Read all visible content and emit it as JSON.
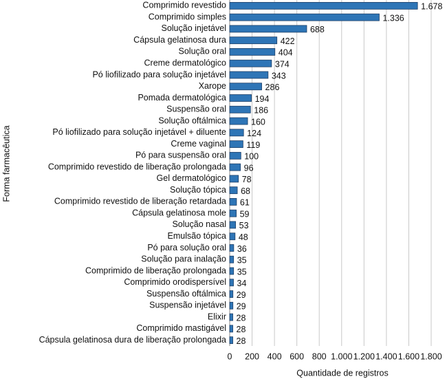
{
  "chart_data": {
    "type": "bar",
    "orientation": "horizontal",
    "x_label": "Quantidade de registros",
    "y_label": "Forma farmacêutica",
    "categories": [
      "Comprimido revestido",
      "Comprimido simples",
      "Solução injetável",
      "Cápsula gelatinosa dura",
      "Solução oral",
      "Creme dermatológico",
      "Pó liofilizado para solução injetável",
      "Xarope",
      "Pomada dermatológica",
      "Suspensão oral",
      "Solução oftálmica",
      "Pó liofilizado para solução injetável + diluente",
      "Creme vaginal",
      "Pó para suspensão oral",
      "Comprimido revestido de liberação prolongada",
      "Gel dermatológico",
      "Solução tópica",
      "Comprimido revestido de liberação retardada",
      "Cápsula gelatinosa mole",
      "Solução nasal",
      "Emulsão tópica",
      "Pó para solução oral",
      "Solução para inalação",
      "Comprimido de liberação prolongada",
      "Comprimido orodispersível",
      "Suspensão oftálmica",
      "Suspensão injetável",
      "Elixir",
      "Comprimido mastigável",
      "Cápsula gelatinosa dura de liberação prolongada"
    ],
    "values": [
      1678,
      1336,
      688,
      422,
      404,
      374,
      343,
      286,
      194,
      186,
      160,
      124,
      119,
      100,
      96,
      78,
      68,
      61,
      59,
      53,
      48,
      36,
      35,
      35,
      34,
      29,
      29,
      28,
      28,
      28
    ],
    "value_labels": [
      "1.678",
      "1.336",
      "688",
      "422",
      "404",
      "374",
      "343",
      "286",
      "194",
      "186",
      "160",
      "124",
      "119",
      "100",
      "96",
      "78",
      "68",
      "61",
      "59",
      "53",
      "48",
      "36",
      "35",
      "35",
      "34",
      "29",
      "29",
      "28",
      "28",
      "28"
    ],
    "color": "#2e75b6",
    "xlim": [
      0,
      1800
    ],
    "xticks": [
      0,
      200,
      400,
      600,
      800,
      {
        "value": 1000,
        "label": "1.000"
      },
      {
        "value": 1200,
        "label": "1.200"
      },
      {
        "value": 1400,
        "label": "1.400"
      },
      {
        "value": 1600,
        "label": "1.600"
      },
      {
        "value": 1800,
        "label": "1.800"
      }
    ],
    "grid": true
  }
}
